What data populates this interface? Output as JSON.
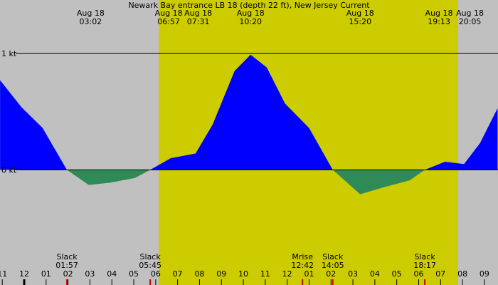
{
  "chart_data": {
    "type": "current",
    "title": "Newark Bay entrance LB 18 (depth 22 ft), New Jersey Current",
    "x": [
      -1.1,
      -0.13,
      0.84,
      1.33,
      1.95,
      2.95,
      3.93,
      5.06,
      5.75,
      6.69,
      7.82,
      8.6,
      9.6,
      10.33,
      11.07,
      11.9,
      13.0,
      14.08,
      15.33,
      16.4,
      17.6,
      18.28,
      19.2,
      20.07,
      20.8,
      21.6
    ],
    "values": [
      0.77,
      0.54,
      0.36,
      0.2,
      0,
      -0.13,
      -0.11,
      -0.07,
      0,
      0.1,
      0.14,
      0.39,
      0.85,
      0.99,
      0.88,
      0.57,
      0.36,
      0,
      -0.21,
      -0.15,
      -0.09,
      0,
      0.07,
      0.05,
      0.23,
      0.53
    ],
    "flood_color": "#0000ff",
    "ebb_color": "#2e8b57",
    "xlim": [
      -1.104,
      21.62
    ],
    "ylim": [
      -0.99,
      1.46
    ],
    "yticks": [
      {
        "value": 1,
        "label": "1 kt"
      },
      {
        "value": 0,
        "label": "0 kt"
      }
    ],
    "xticks": [
      {
        "value": -1,
        "label": "11"
      },
      {
        "value": 0,
        "label": "12"
      },
      {
        "value": 1,
        "label": "01"
      },
      {
        "value": 2,
        "label": "02"
      },
      {
        "value": 3,
        "label": "03"
      },
      {
        "value": 4,
        "label": "04"
      },
      {
        "value": 5,
        "label": "05"
      },
      {
        "value": 6,
        "label": "06"
      },
      {
        "value": 7,
        "label": "07"
      },
      {
        "value": 8,
        "label": "08"
      },
      {
        "value": 9,
        "label": "09"
      },
      {
        "value": 10,
        "label": "10"
      },
      {
        "value": 11,
        "label": "11"
      },
      {
        "value": 12,
        "label": "12"
      },
      {
        "value": 13,
        "label": "01"
      },
      {
        "value": 14,
        "label": "02"
      },
      {
        "value": 15,
        "label": "03"
      },
      {
        "value": 16,
        "label": "04"
      },
      {
        "value": 17,
        "label": "05"
      },
      {
        "value": 18,
        "label": "06"
      },
      {
        "value": 19,
        "label": "07"
      },
      {
        "value": 20,
        "label": "08"
      },
      {
        "value": 21,
        "label": "09"
      }
    ],
    "daylight": [
      6.14,
      19.8
    ],
    "top_events": [
      {
        "date": "Aug 18",
        "time": "03:02",
        "hour": 3.03
      },
      {
        "date": "Aug 18",
        "time": "06:57",
        "hour": 6.95
      },
      {
        "date": "Aug 18",
        "time": "07:31",
        "hour": 7.52
      },
      {
        "date": "Aug 18",
        "time": "10:20",
        "hour": 10.33
      },
      {
        "date": "Aug 18",
        "time": "15:20",
        "hour": 15.33
      },
      {
        "date": "Aug 18",
        "time": "19:13",
        "hour": 19.22
      },
      {
        "date": "Aug 18",
        "time": "20:05",
        "hour": 20.08
      }
    ],
    "bottom_events": [
      {
        "label": "Slack",
        "time": "01:57",
        "hour": 1.95
      },
      {
        "label": "Slack",
        "time": "05:45",
        "hour": 5.75
      },
      {
        "label": "Mrise",
        "time": "12:42",
        "hour": 12.7
      },
      {
        "label": "Slack",
        "time": "14:05",
        "hour": 14.08
      },
      {
        "label": "Slack",
        "time": "18:17",
        "hour": 18.28
      }
    ]
  }
}
